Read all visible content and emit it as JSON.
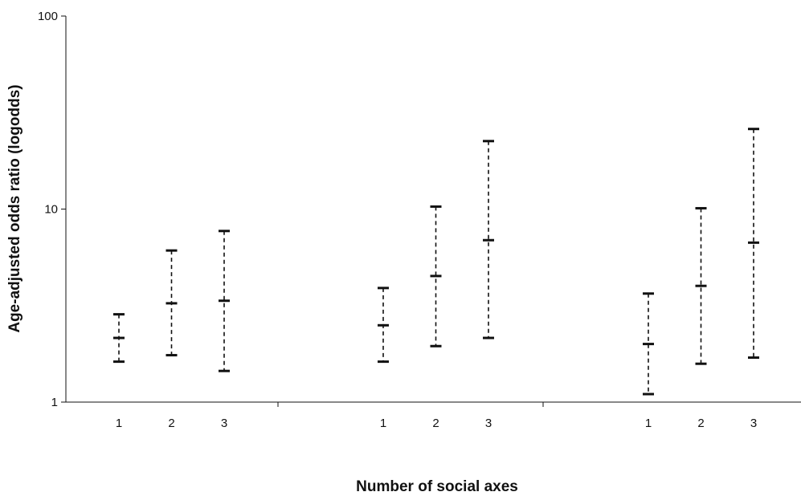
{
  "chart_data": {
    "type": "errorbar",
    "yscale": "log",
    "ylim": [
      1,
      100
    ],
    "ylabel": "Age-adjusted odds ratio (logodds)",
    "xlabel": "Number of social axes",
    "yticks": [
      {
        "value": 1,
        "label": "1"
      },
      {
        "value": 10,
        "label": "10"
      },
      {
        "value": 100,
        "label": "100"
      }
    ],
    "groups": [
      {
        "points": [
          {
            "x_label": "1",
            "lower": 1.62,
            "estimate": 2.15,
            "upper": 2.85
          },
          {
            "x_label": "2",
            "lower": 1.75,
            "estimate": 3.25,
            "upper": 6.1
          },
          {
            "x_label": "3",
            "lower": 1.45,
            "estimate": 3.35,
            "upper": 7.7
          }
        ]
      },
      {
        "points": [
          {
            "x_label": "1",
            "lower": 1.62,
            "estimate": 2.5,
            "upper": 3.9
          },
          {
            "x_label": "2",
            "lower": 1.95,
            "estimate": 4.5,
            "upper": 10.3
          },
          {
            "x_label": "3",
            "lower": 2.15,
            "estimate": 6.9,
            "upper": 22.5
          }
        ]
      },
      {
        "points": [
          {
            "x_label": "1",
            "lower": 1.1,
            "estimate": 2.0,
            "upper": 3.65
          },
          {
            "x_label": "2",
            "lower": 1.58,
            "estimate": 4.0,
            "upper": 10.1
          },
          {
            "x_label": "3",
            "lower": 1.7,
            "estimate": 6.7,
            "upper": 26.0
          }
        ]
      }
    ],
    "style": {
      "line_color": "#111111",
      "line_dash": "dashed"
    }
  }
}
